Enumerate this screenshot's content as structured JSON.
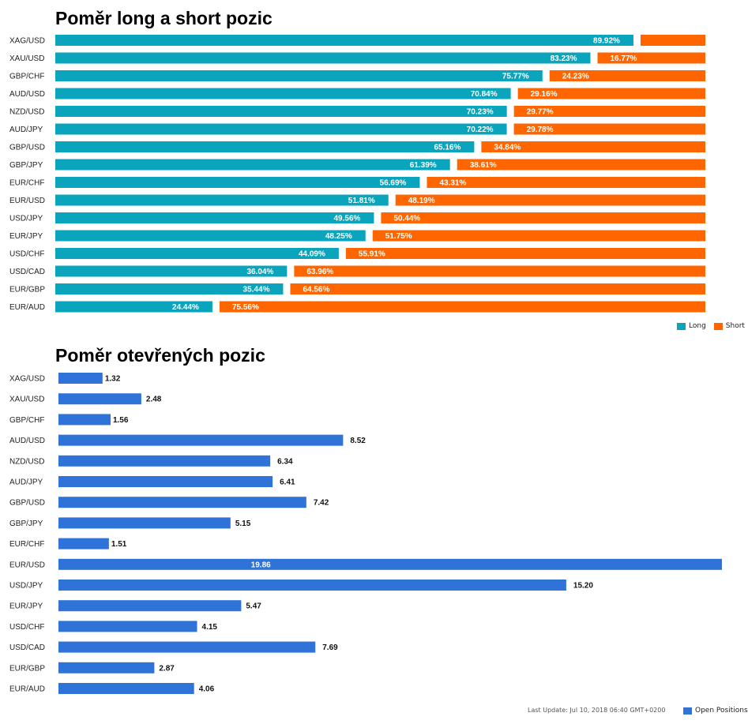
{
  "chart_data": [
    {
      "type": "bar",
      "orientation": "horizontal",
      "stacked": true,
      "title": "Poměr long a short pozic",
      "categories": [
        "XAG/USD",
        "XAU/USD",
        "GBP/CHF",
        "AUD/USD",
        "NZD/USD",
        "AUD/JPY",
        "GBP/USD",
        "GBP/JPY",
        "EUR/CHF",
        "EUR/USD",
        "USD/JPY",
        "EUR/JPY",
        "USD/CHF",
        "USD/CAD",
        "EUR/GBP",
        "EUR/AUD"
      ],
      "series": [
        {
          "name": "Long",
          "color": "#0aa5bd",
          "values": [
            89.92,
            83.23,
            75.77,
            70.84,
            70.23,
            70.22,
            65.16,
            61.39,
            56.69,
            51.81,
            49.56,
            48.25,
            44.09,
            36.04,
            35.44,
            24.44
          ],
          "labels": [
            "89.92%",
            "83.23%",
            "75.77%",
            "70.84%",
            "70.23%",
            "70.22%",
            "65.16%",
            "61.39%",
            "56.69%",
            "51.81%",
            "49.56%",
            "48.25%",
            "44.09%",
            "36.04%",
            "35.44%",
            "24.44%"
          ]
        },
        {
          "name": "Short",
          "color": "#ff6600",
          "values": [
            10.08,
            16.77,
            24.23,
            29.16,
            29.77,
            29.78,
            34.84,
            38.61,
            43.31,
            48.19,
            50.44,
            51.75,
            55.91,
            63.96,
            64.56,
            75.56
          ],
          "labels": [
            "",
            "16.77%",
            "24.23%",
            "29.16%",
            "29.77%",
            "29.78%",
            "34.84%",
            "38.61%",
            "43.31%",
            "48.19%",
            "50.44%",
            "51.75%",
            "55.91%",
            "63.96%",
            "64.56%",
            "75.56%"
          ]
        }
      ],
      "legend_position": "bottom-right"
    },
    {
      "type": "bar",
      "orientation": "horizontal",
      "title": "Poměr otevřených pozic",
      "categories": [
        "XAG/USD",
        "XAU/USD",
        "GBP/CHF",
        "AUD/USD",
        "NZD/USD",
        "AUD/JPY",
        "GBP/USD",
        "GBP/JPY",
        "EUR/CHF",
        "EUR/USD",
        "USD/JPY",
        "EUR/JPY",
        "USD/CHF",
        "USD/CAD",
        "EUR/GBP",
        "EUR/AUD"
      ],
      "series": [
        {
          "name": "Open Positions",
          "color": "#2f73d9",
          "values": [
            1.32,
            2.48,
            1.56,
            8.52,
            6.34,
            6.41,
            7.42,
            5.15,
            1.51,
            19.86,
            15.2,
            5.47,
            4.15,
            7.69,
            2.87,
            4.06
          ],
          "labels": [
            "1.32",
            "2.48",
            "1.56",
            "8.52",
            "6.34",
            "6.41",
            "7.42",
            "5.15",
            "1.51",
            "19.86",
            "15.20",
            "5.47",
            "4.15",
            "7.69",
            "2.87",
            "4.06"
          ]
        }
      ],
      "legend_position": "bottom-right"
    }
  ],
  "footer": {
    "last_update": "Last Update: Jul 10, 2018 06:40 GMT+0200"
  }
}
